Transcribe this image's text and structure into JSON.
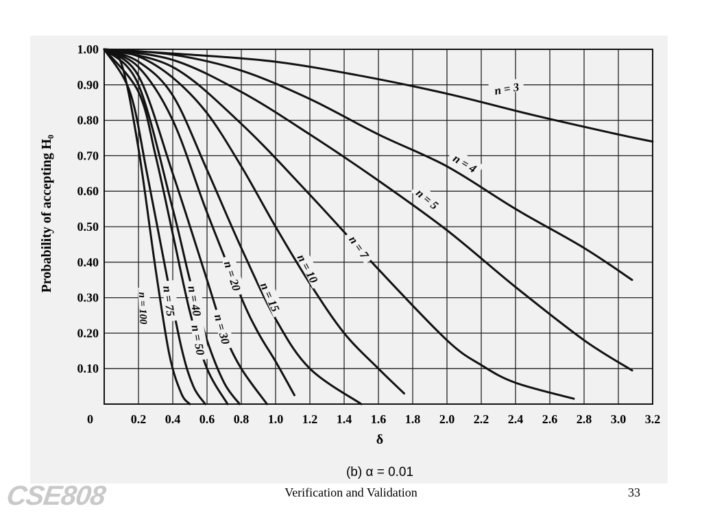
{
  "slide": {
    "footer_title": "Verification and Validation",
    "page_number": "33",
    "logo_text": "CSE808"
  },
  "chart_data": {
    "type": "line",
    "title": "",
    "subtitle": "(b)  α = 0.01",
    "xlabel": "δ",
    "ylabel": "Probability of accepting H₀",
    "xlim": [
      0,
      3.2
    ],
    "ylim": [
      0,
      1.0
    ],
    "grid": true,
    "x_ticks": [
      "0.2",
      "0.4",
      "0.6",
      "0.8",
      "1.0",
      "1.2",
      "1.4",
      "1.6",
      "1.8",
      "2.0",
      "2.2",
      "2.4",
      "2.6",
      "2.8",
      "3.0",
      "3.2"
    ],
    "y_ticks": [
      "0",
      "0.10",
      "0.20",
      "0.30",
      "0.40",
      "0.50",
      "0.60",
      "0.70",
      "0.80",
      "0.90",
      "1.00"
    ],
    "series": [
      {
        "name": "n = 3",
        "points": [
          [
            0,
            1.0
          ],
          [
            0.5,
            0.985
          ],
          [
            1.0,
            0.965
          ],
          [
            1.5,
            0.925
          ],
          [
            2.0,
            0.875
          ],
          [
            2.5,
            0.815
          ],
          [
            3.0,
            0.76
          ],
          [
            3.2,
            0.74
          ]
        ]
      },
      {
        "name": "n = 4",
        "points": [
          [
            0,
            1.0
          ],
          [
            0.4,
            0.985
          ],
          [
            0.8,
            0.94
          ],
          [
            1.2,
            0.86
          ],
          [
            1.6,
            0.76
          ],
          [
            2.0,
            0.67
          ],
          [
            2.4,
            0.55
          ],
          [
            2.8,
            0.44
          ],
          [
            3.08,
            0.35
          ]
        ]
      },
      {
        "name": "n = 5",
        "points": [
          [
            0,
            1.0
          ],
          [
            0.4,
            0.97
          ],
          [
            0.8,
            0.88
          ],
          [
            1.2,
            0.76
          ],
          [
            1.6,
            0.63
          ],
          [
            2.0,
            0.49
          ],
          [
            2.4,
            0.33
          ],
          [
            2.8,
            0.18
          ],
          [
            3.08,
            0.095
          ]
        ]
      },
      {
        "name": "n = 7",
        "points": [
          [
            0,
            1.0
          ],
          [
            0.4,
            0.95
          ],
          [
            0.8,
            0.79
          ],
          [
            1.2,
            0.59
          ],
          [
            1.6,
            0.38
          ],
          [
            2.0,
            0.18
          ],
          [
            2.2,
            0.11
          ],
          [
            2.4,
            0.06
          ],
          [
            2.74,
            0.015
          ]
        ]
      },
      {
        "name": "n = 10",
        "points": [
          [
            0,
            1.0
          ],
          [
            0.2,
            0.98
          ],
          [
            0.4,
            0.92
          ],
          [
            0.6,
            0.82
          ],
          [
            0.8,
            0.67
          ],
          [
            1.0,
            0.5
          ],
          [
            1.2,
            0.34
          ],
          [
            1.4,
            0.2
          ],
          [
            1.6,
            0.1
          ],
          [
            1.75,
            0.03
          ]
        ]
      },
      {
        "name": "n = 15",
        "points": [
          [
            0,
            1.0
          ],
          [
            0.2,
            0.965
          ],
          [
            0.4,
            0.87
          ],
          [
            0.6,
            0.66
          ],
          [
            0.8,
            0.44
          ],
          [
            1.0,
            0.24
          ],
          [
            1.2,
            0.1
          ],
          [
            1.5,
            0.0
          ]
        ]
      },
      {
        "name": "n = 20",
        "points": [
          [
            0,
            1.0
          ],
          [
            0.2,
            0.95
          ],
          [
            0.4,
            0.8
          ],
          [
            0.6,
            0.54
          ],
          [
            0.8,
            0.3
          ],
          [
            0.9,
            0.2
          ],
          [
            1.0,
            0.12
          ],
          [
            1.11,
            0.025
          ]
        ]
      },
      {
        "name": "n = 30",
        "points": [
          [
            0,
            1.0
          ],
          [
            0.2,
            0.925
          ],
          [
            0.4,
            0.65
          ],
          [
            0.6,
            0.35
          ],
          [
            0.7,
            0.2
          ],
          [
            0.8,
            0.1
          ],
          [
            0.95,
            0.0
          ]
        ]
      },
      {
        "name": "n = 40",
        "points": [
          [
            0,
            1.0
          ],
          [
            0.2,
            0.9
          ],
          [
            0.4,
            0.55
          ],
          [
            0.5,
            0.35
          ],
          [
            0.6,
            0.18
          ],
          [
            0.7,
            0.06
          ],
          [
            0.79,
            0.0
          ]
        ]
      },
      {
        "name": "n = 50",
        "points": [
          [
            0,
            1.0
          ],
          [
            0.2,
            0.88
          ],
          [
            0.3,
            0.7
          ],
          [
            0.4,
            0.48
          ],
          [
            0.5,
            0.26
          ],
          [
            0.6,
            0.1
          ],
          [
            0.72,
            0.0
          ]
        ]
      },
      {
        "name": "n = 75",
        "points": [
          [
            0,
            1.0
          ],
          [
            0.15,
            0.88
          ],
          [
            0.25,
            0.65
          ],
          [
            0.35,
            0.4
          ],
          [
            0.45,
            0.16
          ],
          [
            0.52,
            0.05
          ],
          [
            0.59,
            0.0
          ]
        ]
      },
      {
        "name": "n = 100",
        "points": [
          [
            0,
            1.0
          ],
          [
            0.1,
            0.96
          ],
          [
            0.2,
            0.72
          ],
          [
            0.3,
            0.38
          ],
          [
            0.38,
            0.14
          ],
          [
            0.45,
            0.03
          ],
          [
            0.5,
            0.0
          ]
        ]
      }
    ],
    "curve_labels": [
      {
        "text": "n = 3",
        "x": 2.35,
        "y": 0.885,
        "angle": -10
      },
      {
        "text": "n = 4",
        "x": 2.1,
        "y": 0.675,
        "angle": 31
      },
      {
        "name": "",
        "text": "n = 5",
        "x": 1.88,
        "y": 0.575,
        "angle": 40
      },
      {
        "text": "n = 7",
        "x": 1.48,
        "y": 0.44,
        "angle": 55
      },
      {
        "text": "n = 10",
        "x": 1.18,
        "y": 0.38,
        "angle": 62
      },
      {
        "text": "n = 15",
        "x": 0.96,
        "y": 0.3,
        "angle": 66
      },
      {
        "text": "n = 20",
        "x": 0.74,
        "y": 0.36,
        "angle": 72
      },
      {
        "text": "n = 30",
        "x": 0.68,
        "y": 0.21,
        "angle": 75
      },
      {
        "text": "n = 40",
        "x": 0.52,
        "y": 0.29,
        "angle": 80
      },
      {
        "text": "n = 50",
        "x": 0.54,
        "y": 0.18,
        "angle": 80
      },
      {
        "text": "n = 75",
        "x": 0.37,
        "y": 0.29,
        "angle": 83
      },
      {
        "text": "n = 100",
        "x": 0.22,
        "y": 0.27,
        "angle": 88
      }
    ]
  }
}
